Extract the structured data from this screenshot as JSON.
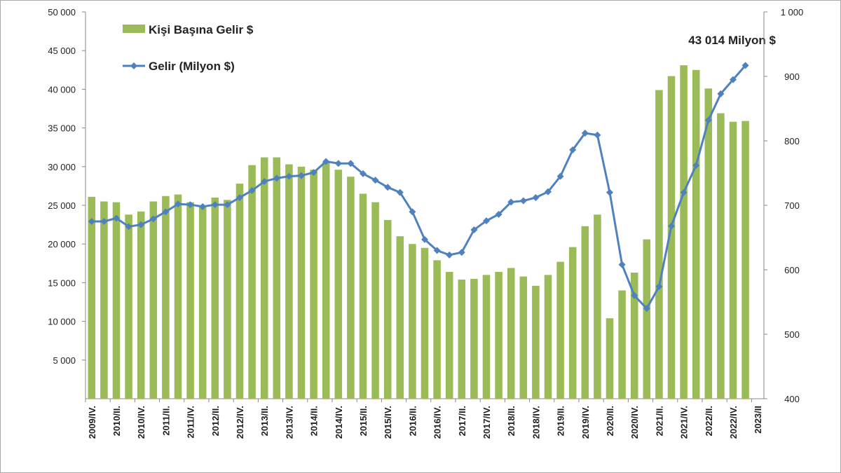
{
  "chart_data": {
    "type": "bar_line",
    "annotation": "43 014 Milyon $",
    "categories": [
      "2009/IV.",
      null,
      "2010/II.",
      null,
      "2010/IV.",
      null,
      "2011/II.",
      null,
      "2011/IV.",
      null,
      "2012/II.",
      null,
      "2012/IV.",
      null,
      "2013/II.",
      null,
      "2013/IV.",
      null,
      "2014/II.",
      null,
      "2014/IV.",
      null,
      "2015/II.",
      null,
      "2015/IV.",
      null,
      "2016/II.",
      null,
      "2016/IV.",
      null,
      "2017/II.",
      null,
      "2017/IV.",
      null,
      "2018/II.",
      null,
      "2018/IV.",
      null,
      "2019/II.",
      null,
      "2019/IV.",
      null,
      "2020/II.",
      null,
      "2020/IV.",
      null,
      "2021/II.",
      null,
      "2021/IV.",
      null,
      "2022/II.",
      null,
      "2022/IV.",
      null,
      "2023/II"
    ],
    "series": [
      {
        "name": "Kişi Başına Gelir $",
        "color": "#9bbb59",
        "kind": "bar",
        "values": [
          26100,
          25500,
          25400,
          23800,
          24200,
          25500,
          26200,
          26400,
          25400,
          25000,
          26000,
          25700,
          27800,
          30200,
          31200,
          31200,
          30300,
          30000,
          29600,
          30600,
          29600,
          28700,
          26500,
          25400,
          23100,
          21000,
          20000,
          19500,
          17900,
          16400,
          15400,
          15500,
          16000,
          16400,
          16900,
          15800,
          14600,
          16000,
          17700,
          19600,
          22300,
          23800,
          10400,
          14000,
          16300,
          20600,
          39900,
          41700,
          43100,
          42500,
          40100,
          36900,
          35800,
          35900,
          null
        ]
      },
      {
        "name": "Gelir (Milyon $)",
        "color": "#4f81bd",
        "kind": "line",
        "axis": "y2",
        "values": [
          675,
          675,
          680,
          667,
          670,
          679,
          690,
          702,
          701,
          698,
          701,
          701,
          712,
          723,
          737,
          742,
          745,
          746,
          751,
          768,
          765,
          765,
          749,
          739,
          728,
          720,
          690,
          647,
          630,
          623,
          627,
          662,
          676,
          686,
          705,
          707,
          712,
          721,
          745,
          786,
          812,
          809,
          720,
          608,
          560,
          540,
          574,
          668,
          720,
          762,
          832,
          873,
          895,
          917,
          null
        ]
      }
    ],
    "ylim": [
      0,
      50000
    ],
    "yticks": [
      {
        "value": 5000,
        "label": "5 000"
      },
      {
        "value": 10000,
        "label": "10 000"
      },
      {
        "value": 15000,
        "label": "15 000"
      },
      {
        "value": 20000,
        "label": "20 000"
      },
      {
        "value": 25000,
        "label": "25 000"
      },
      {
        "value": 30000,
        "label": "30 000"
      },
      {
        "value": 35000,
        "label": "35 000"
      },
      {
        "value": 40000,
        "label": "40 000"
      },
      {
        "value": 45000,
        "label": "45 000"
      },
      {
        "value": 50000,
        "label": "50 000"
      }
    ],
    "y2lim": [
      400,
      1000
    ],
    "y2ticks": [
      400,
      500,
      600,
      700,
      800,
      900,
      {
        "value": 1000,
        "label": "1 000"
      }
    ]
  }
}
